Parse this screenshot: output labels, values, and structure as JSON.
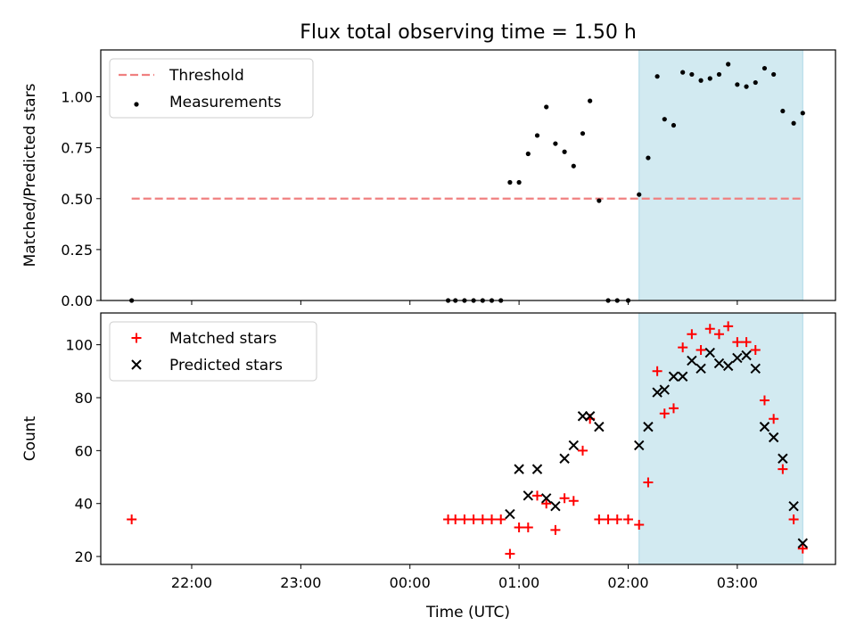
{
  "title": "Flux total observing time = 1.50 h",
  "colors": {
    "threshold": "#f08080",
    "measurement": "#000000",
    "matched": "#ff0000",
    "predicted": "#000000",
    "highlight": "#add8e6"
  },
  "chart_data": [
    {
      "type": "scatter",
      "ylabel": "Matched/Predicted stars",
      "ylim": [
        0,
        1.23
      ],
      "yticks": [
        "0.00",
        "0.25",
        "0.50",
        "0.75",
        "1.00"
      ],
      "ytick_values": [
        0,
        0.25,
        0.5,
        0.75,
        1.0
      ],
      "legend_placement": "top-left",
      "highlight_span": [
        "02:06",
        "03:36"
      ],
      "series": [
        {
          "name": "Threshold",
          "kind": "dashed-line",
          "points": [
            [
              "21:27",
              0.5
            ],
            [
              "03:36",
              0.5
            ]
          ]
        },
        {
          "name": "Measurements",
          "kind": "dot",
          "points": [
            [
              "21:27",
              0.0
            ],
            [
              "00:21",
              0.0
            ],
            [
              "00:25",
              0.0
            ],
            [
              "00:30",
              0.0
            ],
            [
              "00:35",
              0.0
            ],
            [
              "00:40",
              0.0
            ],
            [
              "00:45",
              0.0
            ],
            [
              "00:50",
              0.0
            ],
            [
              "00:55",
              0.58
            ],
            [
              "01:00",
              0.58
            ],
            [
              "01:05",
              0.72
            ],
            [
              "01:10",
              0.81
            ],
            [
              "01:15",
              0.95
            ],
            [
              "01:20",
              0.77
            ],
            [
              "01:25",
              0.73
            ],
            [
              "01:30",
              0.66
            ],
            [
              "01:35",
              0.82
            ],
            [
              "01:39",
              0.98
            ],
            [
              "01:44",
              0.49
            ],
            [
              "01:49",
              0.0
            ],
            [
              "01:54",
              0.0
            ],
            [
              "02:00",
              0.0
            ],
            [
              "02:06",
              0.52
            ],
            [
              "02:11",
              0.7
            ],
            [
              "02:16",
              1.1
            ],
            [
              "02:20",
              0.89
            ],
            [
              "02:25",
              0.86
            ],
            [
              "02:30",
              1.12
            ],
            [
              "02:35",
              1.11
            ],
            [
              "02:40",
              1.08
            ],
            [
              "02:45",
              1.09
            ],
            [
              "02:50",
              1.11
            ],
            [
              "02:55",
              1.16
            ],
            [
              "03:00",
              1.06
            ],
            [
              "03:05",
              1.05
            ],
            [
              "03:10",
              1.07
            ],
            [
              "03:15",
              1.14
            ],
            [
              "03:20",
              1.11
            ],
            [
              "03:25",
              0.93
            ],
            [
              "03:31",
              0.87
            ],
            [
              "03:36",
              0.92
            ]
          ]
        }
      ]
    },
    {
      "type": "scatter",
      "xlabel": "Time (UTC)",
      "ylabel": "Count",
      "ylim": [
        17,
        112
      ],
      "yticks": [
        "20",
        "40",
        "60",
        "80",
        "100"
      ],
      "ytick_values": [
        20,
        40,
        60,
        80,
        100
      ],
      "xticks": [
        "22:00",
        "23:00",
        "00:00",
        "01:00",
        "02:00",
        "03:00"
      ],
      "legend_placement": "top-left",
      "highlight_span": [
        "02:06",
        "03:36"
      ],
      "series": [
        {
          "name": "Matched stars",
          "kind": "plus",
          "points": [
            [
              "21:27",
              34
            ],
            [
              "00:21",
              34
            ],
            [
              "00:25",
              34
            ],
            [
              "00:30",
              34
            ],
            [
              "00:35",
              34
            ],
            [
              "00:40",
              34
            ],
            [
              "00:45",
              34
            ],
            [
              "00:50",
              34
            ],
            [
              "00:55",
              21
            ],
            [
              "01:00",
              31
            ],
            [
              "01:05",
              31
            ],
            [
              "01:10",
              43
            ],
            [
              "01:15",
              40
            ],
            [
              "01:20",
              30
            ],
            [
              "01:25",
              42
            ],
            [
              "01:30",
              41
            ],
            [
              "01:35",
              60
            ],
            [
              "01:39",
              72
            ],
            [
              "01:44",
              34
            ],
            [
              "01:49",
              34
            ],
            [
              "01:54",
              34
            ],
            [
              "02:00",
              34
            ],
            [
              "02:06",
              32
            ],
            [
              "02:11",
              48
            ],
            [
              "02:16",
              90
            ],
            [
              "02:20",
              74
            ],
            [
              "02:25",
              76
            ],
            [
              "02:30",
              99
            ],
            [
              "02:35",
              104
            ],
            [
              "02:40",
              98
            ],
            [
              "02:45",
              106
            ],
            [
              "02:50",
              104
            ],
            [
              "02:55",
              107
            ],
            [
              "03:00",
              101
            ],
            [
              "03:05",
              101
            ],
            [
              "03:10",
              98
            ],
            [
              "03:15",
              79
            ],
            [
              "03:20",
              72
            ],
            [
              "03:25",
              53
            ],
            [
              "03:31",
              34
            ],
            [
              "03:36",
              23
            ]
          ]
        },
        {
          "name": "Predicted stars",
          "kind": "x",
          "points": [
            [
              "00:55",
              36
            ],
            [
              "01:00",
              53
            ],
            [
              "01:05",
              43
            ],
            [
              "01:10",
              53
            ],
            [
              "01:15",
              42
            ],
            [
              "01:20",
              39
            ],
            [
              "01:25",
              57
            ],
            [
              "01:30",
              62
            ],
            [
              "01:35",
              73
            ],
            [
              "01:39",
              73
            ],
            [
              "01:44",
              69
            ],
            [
              "02:06",
              62
            ],
            [
              "02:11",
              69
            ],
            [
              "02:16",
              82
            ],
            [
              "02:20",
              83
            ],
            [
              "02:25",
              88
            ],
            [
              "02:30",
              88
            ],
            [
              "02:35",
              94
            ],
            [
              "02:40",
              91
            ],
            [
              "02:45",
              97
            ],
            [
              "02:50",
              93
            ],
            [
              "02:55",
              92
            ],
            [
              "03:00",
              95
            ],
            [
              "03:05",
              96
            ],
            [
              "03:10",
              91
            ],
            [
              "03:15",
              69
            ],
            [
              "03:20",
              65
            ],
            [
              "03:25",
              57
            ],
            [
              "03:31",
              39
            ],
            [
              "03:36",
              25
            ]
          ]
        }
      ]
    }
  ]
}
